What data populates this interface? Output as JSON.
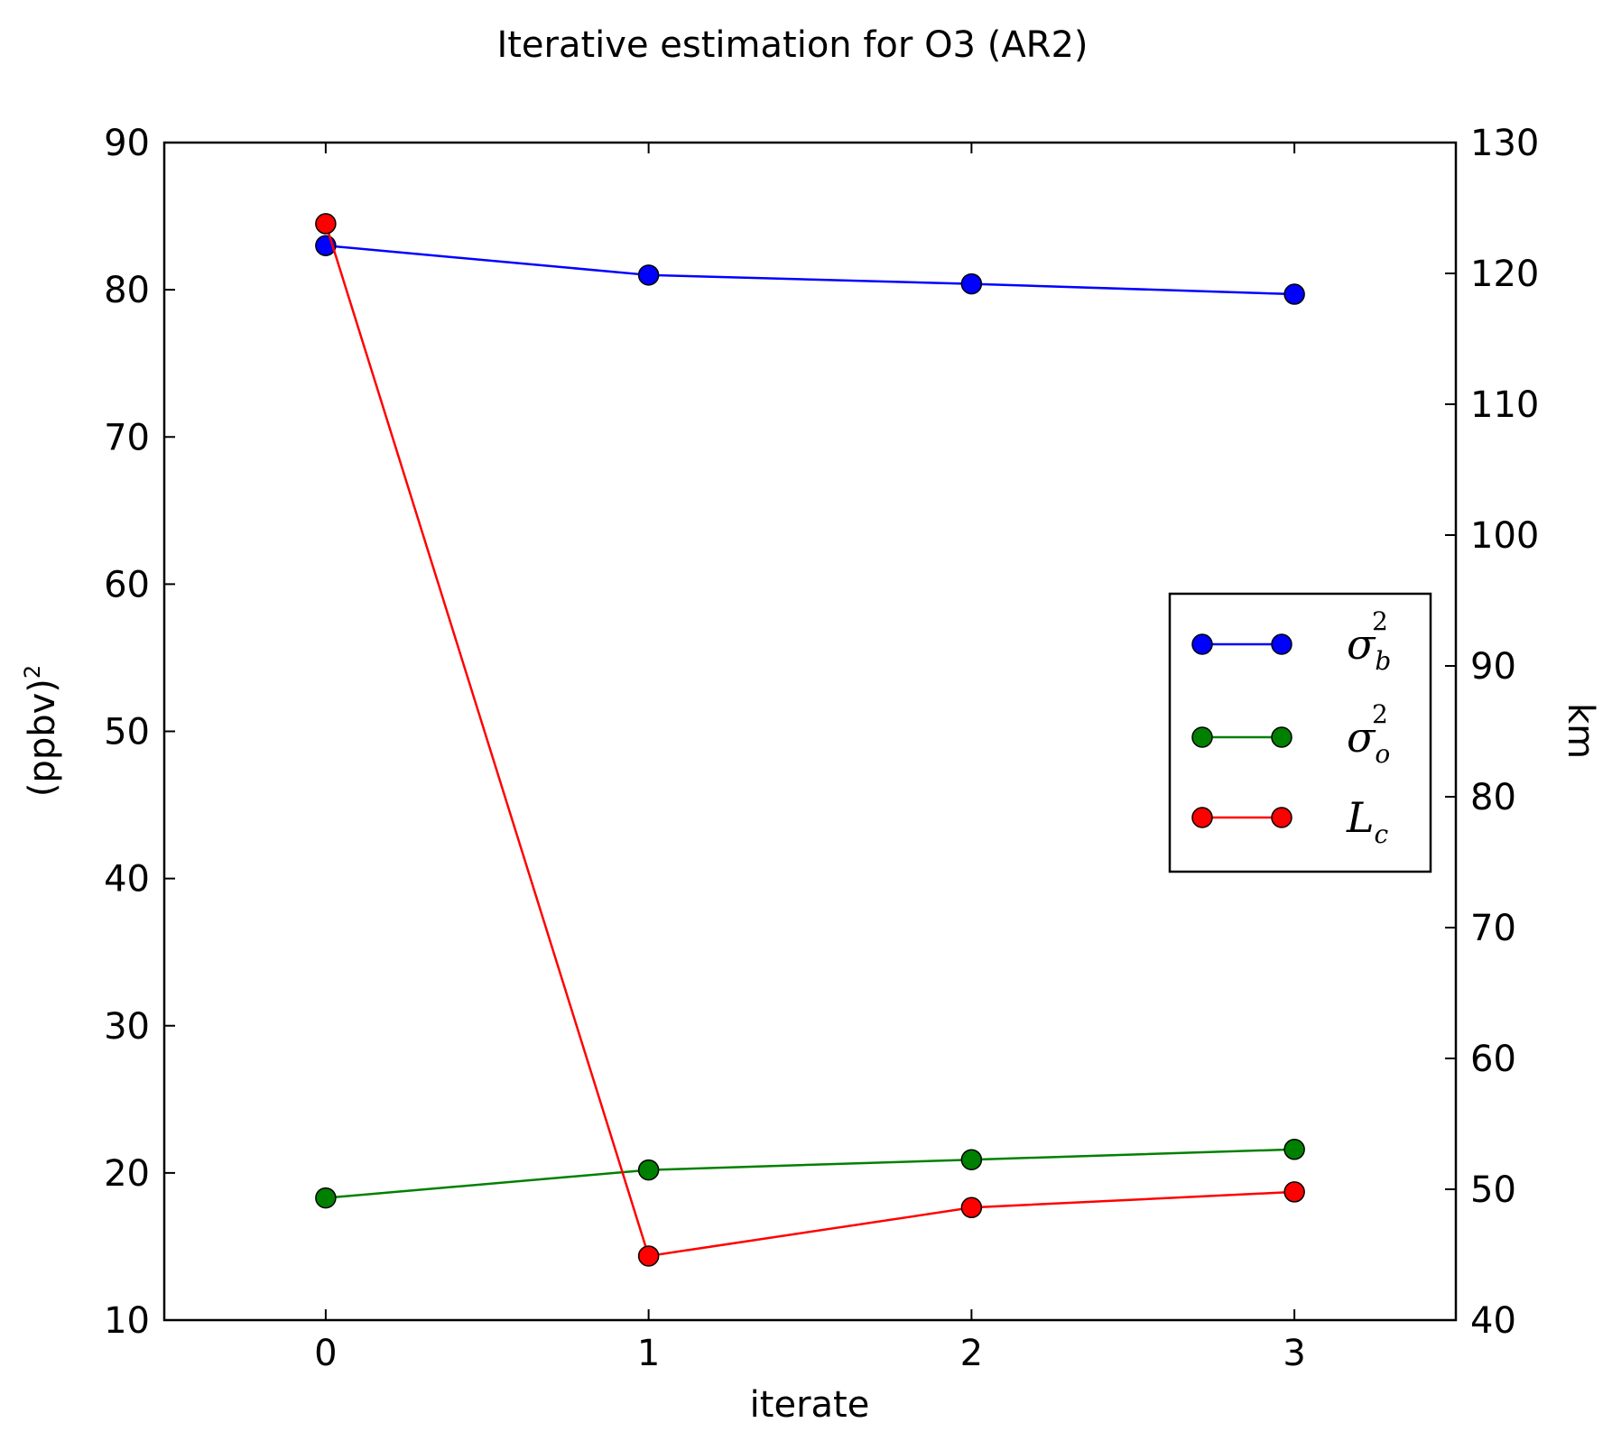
{
  "chart_data": {
    "type": "line",
    "title": "Iterative estimation for O3 (AR2)",
    "xlabel": "iterate",
    "ylabel": "(ppbv)",
    "ylabel_superscript": "2",
    "y2label": "km",
    "x": [
      0,
      1,
      2,
      3
    ],
    "xlim": [
      -0.5,
      3.5
    ],
    "ylim": [
      10,
      90
    ],
    "y2lim": [
      40,
      130
    ],
    "xticks": [
      "0",
      "1",
      "2",
      "3"
    ],
    "yticks": [
      "10",
      "20",
      "30",
      "40",
      "50",
      "60",
      "70",
      "80",
      "90"
    ],
    "y2ticks": [
      "40",
      "50",
      "60",
      "70",
      "80",
      "90",
      "100",
      "110",
      "120",
      "130"
    ],
    "legend_position": "center-right",
    "series": [
      {
        "name": "σ_b^2",
        "label_base": "σ",
        "label_sub": "b",
        "label_sup": "2",
        "color": "#0000ff",
        "axis": "left",
        "values": [
          83.0,
          81.0,
          80.4,
          79.7
        ]
      },
      {
        "name": "σ_o^2",
        "label_base": "σ",
        "label_sub": "o",
        "label_sup": "2",
        "color": "#008000",
        "axis": "left",
        "values": [
          18.3,
          20.2,
          20.9,
          21.6
        ]
      },
      {
        "name": "L_c",
        "label_base": "L",
        "label_sub": "c",
        "label_sup": "",
        "color": "#ff0000",
        "axis": "right",
        "values": [
          123.8,
          44.9,
          48.6,
          49.8
        ]
      }
    ]
  }
}
